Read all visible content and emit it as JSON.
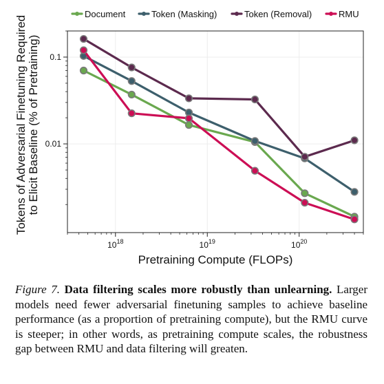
{
  "chart_data": {
    "type": "line",
    "title": "",
    "xlabel": "Pretraining Compute (FLOPs)",
    "ylabel": "Tokens of Adversarial Finetuning Required",
    "ylabel_line2": "to Elicit Baseline (% of Pretraining)",
    "x_scale": "log",
    "y_scale": "log",
    "xlim": [
      3e+17,
      5e+20
    ],
    "ylim": [
      0.00095,
      0.2
    ],
    "x_ticks": [
      1e+18,
      1e+19,
      1e+20
    ],
    "x_tick_labels": [
      {
        "base": "10",
        "exp": "18"
      },
      {
        "base": "10",
        "exp": "19"
      },
      {
        "base": "10",
        "exp": "20"
      }
    ],
    "y_ticks": [
      0.01,
      0.1
    ],
    "y_tick_labels": [
      "0.01",
      "0.1"
    ],
    "grid": true,
    "legend_position": "top",
    "x": [
      4.5e+17,
      1.5e+18,
      6.3e+18,
      3.3e+19,
      1.15e+20,
      4e+20
    ],
    "series": [
      {
        "name": "Document",
        "color": "#6aa84f",
        "values": [
          0.07,
          0.037,
          0.0165,
          0.0105,
          0.0027,
          0.00145
        ]
      },
      {
        "name": "Token (Masking)",
        "color": "#3d5f6c",
        "values": [
          0.103,
          0.053,
          0.023,
          0.0108,
          0.0068,
          0.0028
        ]
      },
      {
        "name": "Token (Removal)",
        "color": "#5c2a4e",
        "values": [
          0.162,
          0.076,
          0.0335,
          0.0325,
          0.0071,
          0.011
        ]
      },
      {
        "name": "RMU",
        "color": "#cc0e55",
        "values": [
          0.12,
          0.0225,
          0.0197,
          0.0049,
          0.0021,
          0.00135
        ]
      }
    ]
  },
  "caption": {
    "label": "Figure 7.",
    "bold": "Data filtering scales more robustly than unlearning.",
    "text": "Larger models need fewer adversarial finetuning samples to achieve baseline performance (as a proportion of pretraining compute), but the RMU curve is steeper; in other words, as pretraining compute scales, the robustness gap between RMU and data filtering will greaten."
  }
}
